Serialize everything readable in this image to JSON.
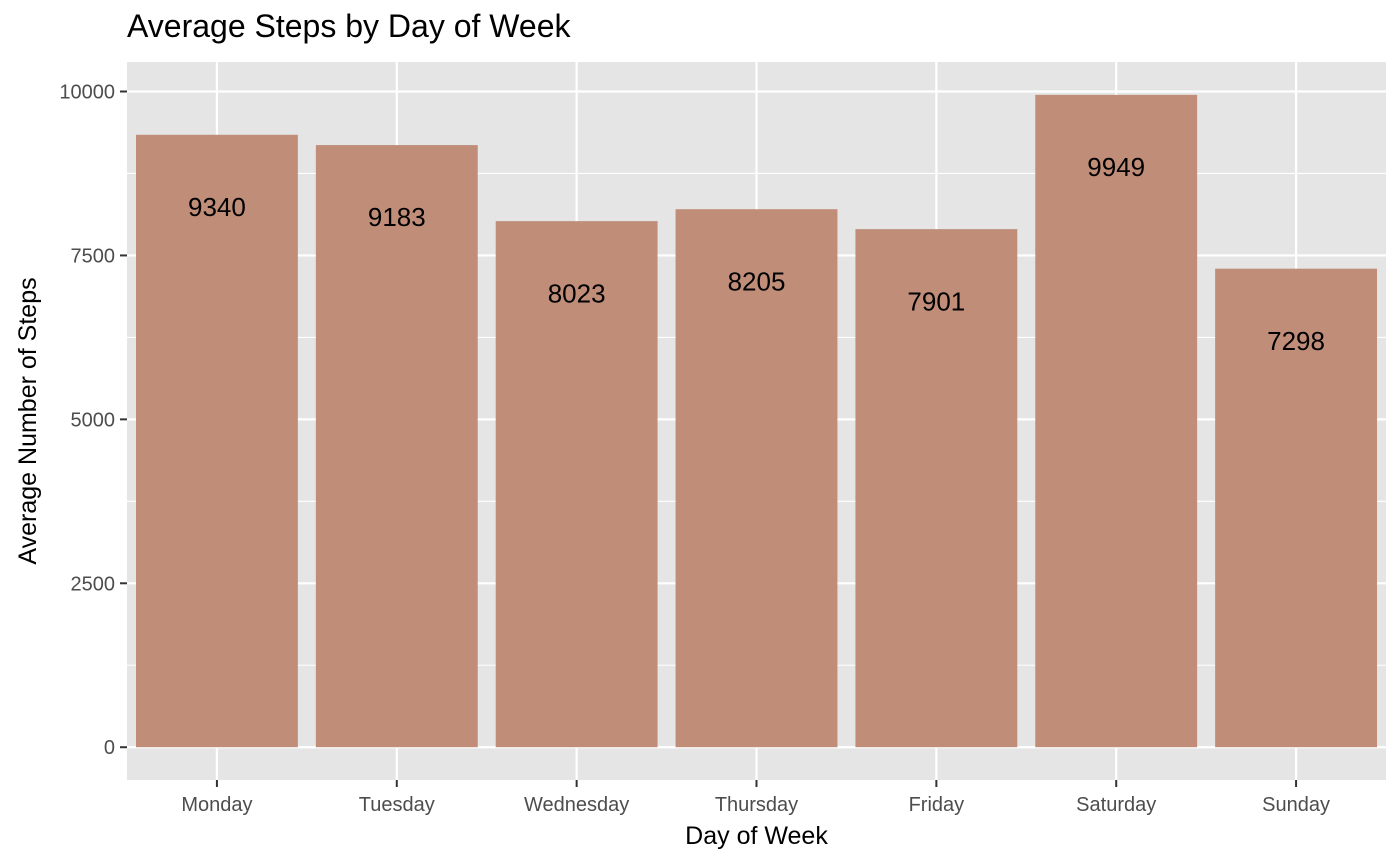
{
  "chart_data": {
    "type": "bar",
    "title": "Average Steps by Day of Week",
    "xlabel": "Day of Week",
    "ylabel": "Average Number of Steps",
    "categories": [
      "Monday",
      "Tuesday",
      "Wednesday",
      "Thursday",
      "Friday",
      "Saturday",
      "Sunday"
    ],
    "values": [
      9340,
      9183,
      8023,
      8205,
      7901,
      9949,
      7298
    ],
    "data_labels": [
      "9340",
      "9183",
      "8023",
      "8205",
      "7901",
      "9949",
      "7298"
    ],
    "yticks": [
      0,
      2500,
      5000,
      7500,
      10000
    ],
    "ytick_labels": [
      "0",
      "2500",
      "5000",
      "7500",
      "10000"
    ],
    "ylim": [
      -500,
      10450
    ],
    "grid": true,
    "legend": "none",
    "colors": {
      "bar": "#c08d79",
      "panel": "#e5e5e5",
      "grid": "#ffffff"
    }
  }
}
